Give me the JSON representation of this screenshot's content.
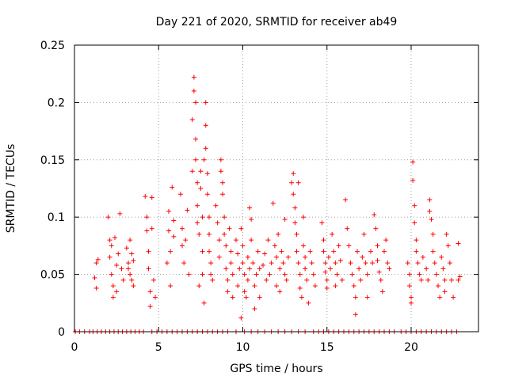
{
  "chart_data": {
    "type": "scatter",
    "title": "Day 221 of 2020, SRMTID for receiver ab49",
    "xlabel": "GPS time / hours",
    "ylabel": "SRMTID / TECUs",
    "xlim": [
      0,
      24
    ],
    "ylim": [
      0,
      0.25
    ],
    "xticks": [
      0,
      5,
      10,
      15,
      20
    ],
    "xtick_labels": [
      "0",
      "5",
      "10",
      "15",
      "20"
    ],
    "yticks": [
      0,
      0.05,
      0.1,
      0.15,
      0.2,
      0.25
    ],
    "ytick_labels": [
      "0",
      "0.05",
      "0.1",
      "0.15",
      "0.2",
      "0.25"
    ],
    "grid": true,
    "marker": "+",
    "series": [
      {
        "name": "SRMTID",
        "color": "#ff0000",
        "points": [
          [
            1.2,
            0.047
          ],
          [
            1.3,
            0.06
          ],
          [
            1.3,
            0.038
          ],
          [
            1.4,
            0.063
          ],
          [
            2.0,
            0.1
          ],
          [
            2.1,
            0.08
          ],
          [
            2.1,
            0.065
          ],
          [
            2.2,
            0.075
          ],
          [
            2.2,
            0.05
          ],
          [
            2.3,
            0.04
          ],
          [
            2.3,
            0.03
          ],
          [
            2.4,
            0.082
          ],
          [
            2.5,
            0.058
          ],
          [
            2.5,
            0.035
          ],
          [
            2.6,
            0.068
          ],
          [
            2.7,
            0.103
          ],
          [
            2.8,
            0.055
          ],
          [
            2.9,
            0.045
          ],
          [
            3.1,
            0.073
          ],
          [
            3.2,
            0.06
          ],
          [
            3.2,
            0.055
          ],
          [
            3.3,
            0.05
          ],
          [
            3.3,
            0.08
          ],
          [
            3.4,
            0.068
          ],
          [
            3.4,
            0.045
          ],
          [
            3.5,
            0.04
          ],
          [
            3.5,
            0.062
          ],
          [
            4.2,
            0.118
          ],
          [
            4.3,
            0.1
          ],
          [
            4.3,
            0.088
          ],
          [
            4.4,
            0.07
          ],
          [
            4.4,
            0.055
          ],
          [
            4.5,
            0.035
          ],
          [
            4.5,
            0.022
          ],
          [
            4.6,
            0.09
          ],
          [
            4.6,
            0.117
          ],
          [
            4.7,
            0.045
          ],
          [
            4.8,
            0.03
          ],
          [
            5.5,
            0.06
          ],
          [
            5.6,
            0.105
          ],
          [
            5.6,
            0.088
          ],
          [
            5.7,
            0.04
          ],
          [
            5.7,
            0.07
          ],
          [
            5.8,
            0.126
          ],
          [
            5.9,
            0.083
          ],
          [
            5.9,
            0.097
          ],
          [
            6.3,
            0.12
          ],
          [
            6.4,
            0.09
          ],
          [
            6.4,
            0.075
          ],
          [
            6.5,
            0.06
          ],
          [
            6.6,
            0.08
          ],
          [
            6.7,
            0.106
          ],
          [
            6.8,
            0.05
          ],
          [
            7.0,
            0.14
          ],
          [
            7.0,
            0.185
          ],
          [
            7.1,
            0.222
          ],
          [
            7.1,
            0.21
          ],
          [
            7.2,
            0.2
          ],
          [
            7.2,
            0.168
          ],
          [
            7.2,
            0.15
          ],
          [
            7.3,
            0.13
          ],
          [
            7.3,
            0.11
          ],
          [
            7.3,
            0.095
          ],
          [
            7.4,
            0.085
          ],
          [
            7.4,
            0.04
          ],
          [
            7.5,
            0.14
          ],
          [
            7.5,
            0.125
          ],
          [
            7.6,
            0.1
          ],
          [
            7.6,
            0.07
          ],
          [
            7.6,
            0.05
          ],
          [
            7.7,
            0.025
          ],
          [
            7.7,
            0.15
          ],
          [
            7.8,
            0.2
          ],
          [
            7.8,
            0.18
          ],
          [
            7.8,
            0.16
          ],
          [
            7.9,
            0.138
          ],
          [
            7.9,
            0.12
          ],
          [
            8.0,
            0.1
          ],
          [
            8.0,
            0.085
          ],
          [
            8.0,
            0.07
          ],
          [
            8.1,
            0.06
          ],
          [
            8.1,
            0.05
          ],
          [
            8.2,
            0.045
          ],
          [
            8.4,
            0.11
          ],
          [
            8.5,
            0.095
          ],
          [
            8.6,
            0.08
          ],
          [
            8.6,
            0.065
          ],
          [
            8.7,
            0.15
          ],
          [
            8.7,
            0.14
          ],
          [
            8.8,
            0.13
          ],
          [
            8.8,
            0.12
          ],
          [
            8.9,
            0.1
          ],
          [
            8.9,
            0.085
          ],
          [
            9.0,
            0.075
          ],
          [
            9.0,
            0.055
          ],
          [
            9.1,
            0.045
          ],
          [
            9.1,
            0.035
          ],
          [
            9.2,
            0.09
          ],
          [
            9.3,
            0.07
          ],
          [
            9.3,
            0.06
          ],
          [
            9.4,
            0.05
          ],
          [
            9.4,
            0.03
          ],
          [
            9.6,
            0.08
          ],
          [
            9.7,
            0.068
          ],
          [
            9.7,
            0.04
          ],
          [
            9.8,
            0.055
          ],
          [
            9.9,
            0.012
          ],
          [
            9.9,
            0.09
          ],
          [
            10.0,
            0.075
          ],
          [
            10.0,
            0.06
          ],
          [
            10.1,
            0.05
          ],
          [
            10.1,
            0.035
          ],
          [
            10.2,
            0.03
          ],
          [
            10.3,
            0.045
          ],
          [
            10.3,
            0.065
          ],
          [
            10.4,
            0.055
          ],
          [
            10.4,
            0.108
          ],
          [
            10.5,
            0.098
          ],
          [
            10.5,
            0.08
          ],
          [
            10.6,
            0.06
          ],
          [
            10.7,
            0.04
          ],
          [
            10.7,
            0.02
          ],
          [
            10.8,
            0.05
          ],
          [
            10.9,
            0.07
          ],
          [
            11.0,
            0.055
          ],
          [
            11.0,
            0.03
          ],
          [
            11.2,
            0.058
          ],
          [
            11.3,
            0.068
          ],
          [
            11.4,
            0.045
          ],
          [
            11.5,
            0.08
          ],
          [
            11.6,
            0.05
          ],
          [
            11.7,
            0.06
          ],
          [
            11.8,
            0.112
          ],
          [
            11.9,
            0.075
          ],
          [
            12.0,
            0.065
          ],
          [
            12.0,
            0.04
          ],
          [
            12.1,
            0.085
          ],
          [
            12.2,
            0.055
          ],
          [
            12.2,
            0.035
          ],
          [
            12.3,
            0.07
          ],
          [
            12.4,
            0.06
          ],
          [
            12.5,
            0.098
          ],
          [
            12.5,
            0.05
          ],
          [
            12.6,
            0.045
          ],
          [
            12.7,
            0.065
          ],
          [
            12.9,
            0.13
          ],
          [
            13.0,
            0.138
          ],
          [
            13.0,
            0.12
          ],
          [
            13.1,
            0.108
          ],
          [
            13.1,
            0.095
          ],
          [
            13.2,
            0.085
          ],
          [
            13.2,
            0.07
          ],
          [
            13.3,
            0.13
          ],
          [
            13.3,
            0.06
          ],
          [
            13.4,
            0.05
          ],
          [
            13.4,
            0.038
          ],
          [
            13.5,
            0.03
          ],
          [
            13.6,
            0.1
          ],
          [
            13.6,
            0.075
          ],
          [
            13.7,
            0.065
          ],
          [
            13.7,
            0.055
          ],
          [
            13.8,
            0.045
          ],
          [
            13.9,
            0.025
          ],
          [
            14.0,
            0.07
          ],
          [
            14.1,
            0.06
          ],
          [
            14.2,
            0.05
          ],
          [
            14.3,
            0.04
          ],
          [
            14.7,
            0.095
          ],
          [
            14.8,
            0.08
          ],
          [
            14.8,
            0.07
          ],
          [
            14.9,
            0.06
          ],
          [
            14.9,
            0.052
          ],
          [
            15.0,
            0.045
          ],
          [
            15.0,
            0.038
          ],
          [
            15.1,
            0.065
          ],
          [
            15.2,
            0.055
          ],
          [
            15.3,
            0.085
          ],
          [
            15.4,
            0.07
          ],
          [
            15.5,
            0.06
          ],
          [
            15.5,
            0.04
          ],
          [
            15.6,
            0.05
          ],
          [
            15.7,
            0.075
          ],
          [
            15.8,
            0.062
          ],
          [
            15.9,
            0.045
          ],
          [
            16.1,
            0.115
          ],
          [
            16.2,
            0.09
          ],
          [
            16.3,
            0.075
          ],
          [
            16.4,
            0.06
          ],
          [
            16.5,
            0.05
          ],
          [
            16.6,
            0.04
          ],
          [
            16.7,
            0.03
          ],
          [
            16.7,
            0.015
          ],
          [
            16.8,
            0.07
          ],
          [
            16.9,
            0.055
          ],
          [
            17.0,
            0.045
          ],
          [
            17.1,
            0.065
          ],
          [
            17.2,
            0.085
          ],
          [
            17.3,
            0.06
          ],
          [
            17.4,
            0.05
          ],
          [
            17.4,
            0.03
          ],
          [
            17.6,
            0.07
          ],
          [
            17.7,
            0.06
          ],
          [
            17.8,
            0.102
          ],
          [
            17.9,
            0.09
          ],
          [
            18.0,
            0.075
          ],
          [
            18.0,
            0.062
          ],
          [
            18.1,
            0.052
          ],
          [
            18.2,
            0.045
          ],
          [
            18.3,
            0.035
          ],
          [
            18.4,
            0.07
          ],
          [
            18.5,
            0.08
          ],
          [
            18.6,
            0.06
          ],
          [
            18.7,
            0.055
          ],
          [
            19.8,
            0.06
          ],
          [
            19.9,
            0.05
          ],
          [
            19.9,
            0.04
          ],
          [
            20.0,
            0.03
          ],
          [
            20.0,
            0.025
          ],
          [
            20.1,
            0.148
          ],
          [
            20.1,
            0.132
          ],
          [
            20.2,
            0.11
          ],
          [
            20.2,
            0.095
          ],
          [
            20.3,
            0.08
          ],
          [
            20.3,
            0.07
          ],
          [
            20.4,
            0.06
          ],
          [
            20.5,
            0.05
          ],
          [
            20.6,
            0.045
          ],
          [
            20.7,
            0.065
          ],
          [
            20.9,
            0.055
          ],
          [
            21.0,
            0.045
          ],
          [
            21.1,
            0.115
          ],
          [
            21.1,
            0.105
          ],
          [
            21.2,
            0.098
          ],
          [
            21.3,
            0.085
          ],
          [
            21.3,
            0.07
          ],
          [
            21.4,
            0.06
          ],
          [
            21.5,
            0.05
          ],
          [
            21.6,
            0.04
          ],
          [
            21.7,
            0.03
          ],
          [
            21.8,
            0.065
          ],
          [
            21.9,
            0.055
          ],
          [
            22.0,
            0.045
          ],
          [
            22.0,
            0.035
          ],
          [
            22.1,
            0.085
          ],
          [
            22.2,
            0.075
          ],
          [
            22.3,
            0.06
          ],
          [
            22.4,
            0.045
          ],
          [
            22.5,
            0.03
          ],
          [
            22.8,
            0.077
          ],
          [
            22.8,
            0.045
          ],
          [
            22.9,
            0.048
          ]
        ],
        "zero_points": [
          0.05,
          0.3,
          0.6,
          0.9,
          1.1,
          1.35,
          1.6,
          1.85,
          2.1,
          2.35,
          2.6,
          2.85,
          3.1,
          3.35,
          3.6,
          3.85,
          4.1,
          4.6,
          4.9,
          5.2,
          5.5,
          5.8,
          6.1,
          6.4,
          6.7,
          7.0,
          7.3,
          7.6,
          7.9,
          8.2,
          8.5,
          8.8,
          9.1,
          9.6,
          10.1,
          10.5,
          10.9,
          11.3,
          11.7,
          12.1,
          12.5,
          12.9,
          13.3,
          13.7,
          14.2,
          14.5,
          14.8,
          15.1,
          15.4,
          15.7,
          16.0,
          16.3,
          16.6,
          16.9,
          17.2,
          17.5,
          17.8,
          18.1,
          18.4,
          18.7,
          19.0,
          19.4,
          19.7,
          20.0,
          20.3,
          20.6,
          20.9,
          21.2,
          21.5,
          21.8,
          22.1,
          22.4,
          22.7
        ]
      }
    ]
  }
}
